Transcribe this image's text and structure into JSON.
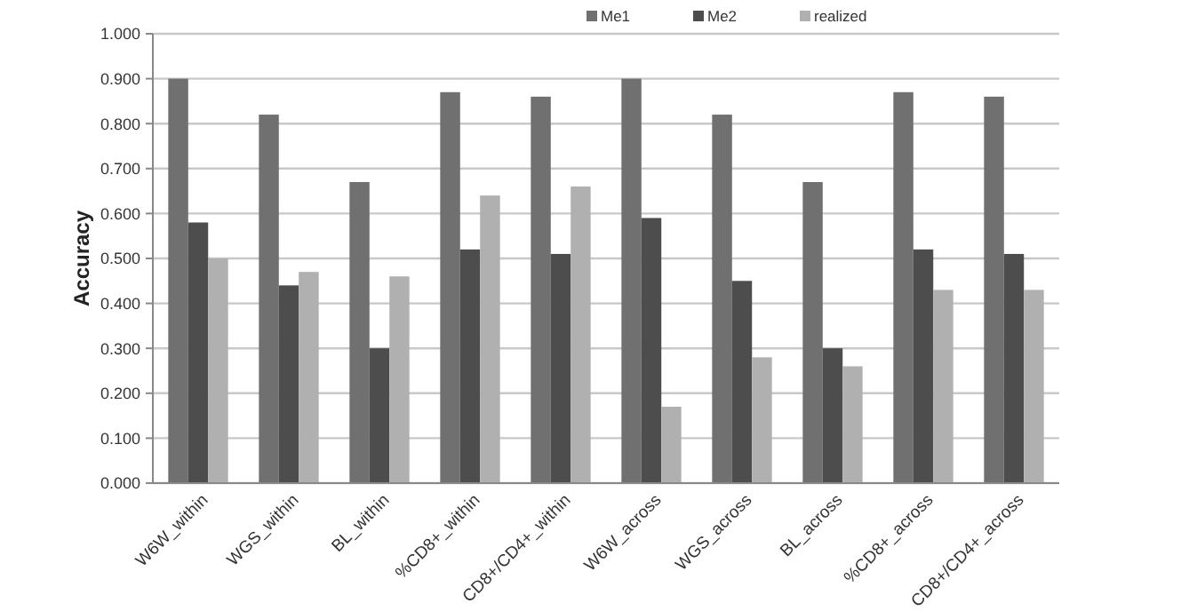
{
  "chart_data": {
    "type": "bar",
    "ylabel": "Accuracy",
    "categories": [
      "W6W_within",
      "WGS_within",
      "BL_within",
      "%CD8+_within",
      "CD8+/CD4+_within",
      "W6W_across",
      "WGS_across",
      "BL_across",
      "%CD8+_across",
      "CD8+/CD4+_across"
    ],
    "series": [
      {
        "name": "Me1",
        "color": "#707070",
        "values": [
          0.9,
          0.82,
          0.67,
          0.87,
          0.86,
          0.9,
          0.82,
          0.67,
          0.87,
          0.86
        ]
      },
      {
        "name": "Me2",
        "color": "#4d4d4d",
        "values": [
          0.58,
          0.44,
          0.3,
          0.52,
          0.51,
          0.59,
          0.45,
          0.3,
          0.52,
          0.51
        ]
      },
      {
        "name": "realized",
        "color": "#b0b0b0",
        "values": [
          0.5,
          0.47,
          0.46,
          0.64,
          0.66,
          0.17,
          0.28,
          0.26,
          0.43,
          0.43
        ]
      }
    ],
    "ylim": [
      0,
      1
    ],
    "yticks": [
      {
        "value": 0,
        "label": "0.000"
      },
      {
        "value": 0.1,
        "label": "0.100"
      },
      {
        "value": 0.2,
        "label": "0.200"
      },
      {
        "value": 0.3,
        "label": "0.300"
      },
      {
        "value": 0.4,
        "label": "0.400"
      },
      {
        "value": 0.5,
        "label": "0.500"
      },
      {
        "value": 0.6,
        "label": "0.600"
      },
      {
        "value": 0.7,
        "label": "0.700"
      },
      {
        "value": 0.8,
        "label": "0.800"
      },
      {
        "value": 0.9,
        "label": "0.900"
      },
      {
        "value": 1,
        "label": "1.000"
      }
    ],
    "grid": "y",
    "legend": "top"
  }
}
